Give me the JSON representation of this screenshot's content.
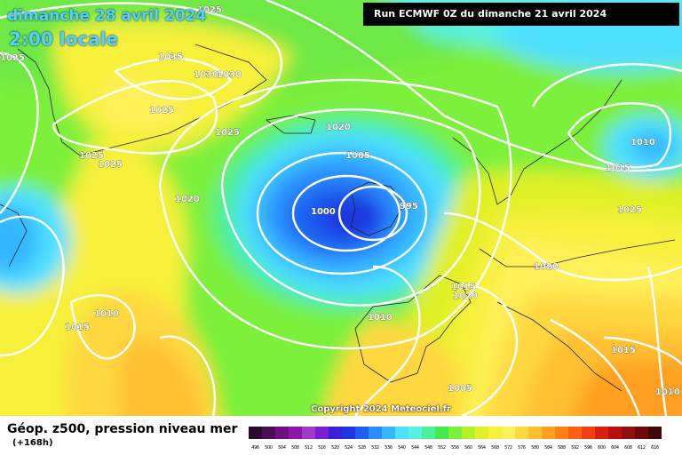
{
  "header": {
    "date": "dimanche 28 avril 2024",
    "hour": "2:00 locale",
    "run": "Run ECMWF 0Z du dimanche 21 avril 2024"
  },
  "copyright": "Copyright 2024 Meteociel.fr",
  "footer": {
    "title": "Géop. z500, pression niveau mer",
    "subtitle": "(+168h)"
  },
  "legend": {
    "labels": [
      "496",
      "500",
      "504",
      "508",
      "512",
      "516",
      "520",
      "524",
      "528",
      "532",
      "536",
      "540",
      "544",
      "548",
      "552",
      "556",
      "560",
      "564",
      "568",
      "572",
      "576",
      "580",
      "584",
      "588",
      "592",
      "596",
      "600",
      "604",
      "608",
      "612",
      "616"
    ],
    "colors": [
      "#2a0a2e",
      "#4a0d55",
      "#6e1180",
      "#8c17a6",
      "#9f3cc4",
      "#7a1fd0",
      "#3b1fd6",
      "#1f35e0",
      "#1f5ef0",
      "#2a8cff",
      "#36b7ff",
      "#4fe0ff",
      "#59f0e0",
      "#4cf09a",
      "#46e84e",
      "#7cf03a",
      "#b4f02a",
      "#e0f028",
      "#f6f03a",
      "#fff05a",
      "#ffd840",
      "#ffc030",
      "#ffa020",
      "#ff8018",
      "#ff6014",
      "#f04010",
      "#d82010",
      "#b81010",
      "#901010",
      "#6a0a0a",
      "#400808"
    ]
  },
  "isobars": [
    {
      "value": "1025",
      "pos": "top"
    },
    {
      "value": "1025",
      "pos": "top-left"
    },
    {
      "value": "1035",
      "pos": "greenland"
    },
    {
      "value": "1030",
      "pos": "greenland"
    },
    {
      "value": "1030",
      "pos": "greenland"
    },
    {
      "value": "1025",
      "pos": "greenland"
    },
    {
      "value": "1025",
      "pos": "greenland-south"
    },
    {
      "value": "1025",
      "pos": "west"
    },
    {
      "value": "1025",
      "pos": "west"
    },
    {
      "value": "1020",
      "pos": "iceland"
    },
    {
      "value": "1005",
      "pos": "low"
    },
    {
      "value": "1000",
      "pos": "low"
    },
    {
      "value": "995",
      "pos": "low-centre"
    },
    {
      "value": "1020",
      "pos": "mid-atlantic"
    },
    {
      "value": "1010",
      "pos": "scandinavia"
    },
    {
      "value": "1015",
      "pos": "scandinavia"
    },
    {
      "value": "1025",
      "pos": "central-europe"
    },
    {
      "value": "1020",
      "pos": "europe"
    },
    {
      "value": "1015",
      "pos": "france"
    },
    {
      "value": "1020",
      "pos": "france"
    },
    {
      "value": "1010",
      "pos": "iberia"
    },
    {
      "value": "1010",
      "pos": "mid-atlantic-south"
    },
    {
      "value": "1015",
      "pos": "west-atlantic"
    },
    {
      "value": "1015",
      "pos": "east-mediterranean"
    },
    {
      "value": "1005",
      "pos": "africa"
    },
    {
      "value": "1010",
      "pos": "east"
    }
  ]
}
